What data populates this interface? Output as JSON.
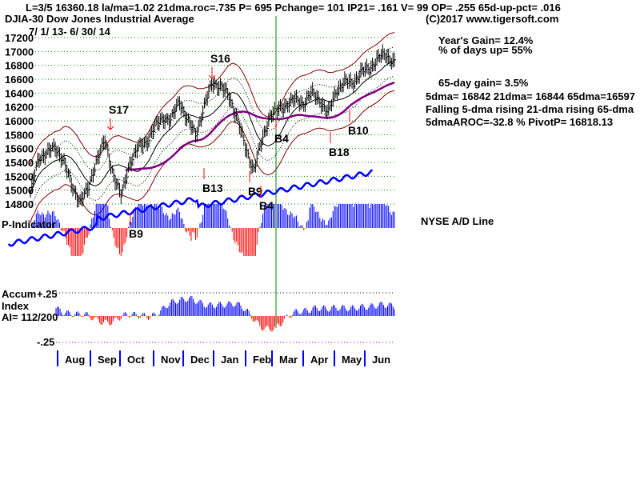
{
  "header": {
    "stats_line": "L=3/5  16360.18  la/ma=1.02 21dma.roc=.735 P=  695 Pchange=  101 IP21= .161 V= 99 OP= .255 65d-up-pct= .016",
    "index_name": "DJIA-30  Dow Jones Industrial Average",
    "copyright": "(C)2017 www.tigersoft.com",
    "date_range": "7/ 1/ 13- 6/ 30/ 14"
  },
  "right_panel": {
    "years_gain": "Year's Gain= 12.4%",
    "pct_days_up": "% of days up= 55%",
    "gain_65d": "65-day gain= 3.5%",
    "dma_values": "5dma= 16842 21dma= 16844 65dma=16597",
    "dma_trend": "Falling 5-dma  rising 21-dma  rising 65-dma",
    "aroc_pivot": "5dmaAROC=-32.8 %  PivotP= 16818.13",
    "ad_line_label": "NYSE A/D Line"
  },
  "chart_data": {
    "type": "line",
    "title": "DJIA-30  Dow Jones Industrial Average",
    "ylim": [
      14800,
      17200
    ],
    "yticks": [
      "17200",
      "17000",
      "16800",
      "16600",
      "16400",
      "16200",
      "16000",
      "15800",
      "15600",
      "15400",
      "15200",
      "15000",
      "14800"
    ],
    "months": [
      "Aug",
      "Sep",
      "Oct",
      "Nov",
      "Dec",
      "Jan",
      "Feb",
      "Mar",
      "Apr",
      "May",
      "Jun"
    ],
    "price_keypoints": [
      14950,
      15450,
      15550,
      15600,
      15450,
      15050,
      14850,
      15000,
      15450,
      15700,
      15250,
      14900,
      15400,
      15600,
      15700,
      15900,
      16050,
      16000,
      16300,
      16000,
      15800,
      16200,
      16550,
      16500,
      16350,
      16050,
      15600,
      15300,
      15700,
      16100,
      16150,
      16250,
      16300,
      16250,
      16400,
      16300,
      16100,
      16450,
      16550,
      16550,
      16700,
      16750,
      16900,
      16950,
      16850
    ],
    "signals": [
      {
        "label": "S17",
        "type": "sell"
      },
      {
        "label": "S16",
        "type": "sell"
      },
      {
        "label": "B13",
        "type": "buy"
      },
      {
        "label": "B9",
        "type": "buy"
      },
      {
        "label": "B4",
        "type": "buy"
      },
      {
        "label": "B18",
        "type": "buy"
      },
      {
        "label": "B10",
        "type": "buy"
      },
      {
        "label": "B9",
        "type": "buy"
      },
      {
        "label": "B4",
        "type": "buy"
      }
    ],
    "p_indicator_label": "P-Indicator",
    "accum": {
      "label1": "Accum",
      "label2": "Index",
      "ai": "AI= 112/200",
      "upper": "+.25",
      "lower": "-.25"
    }
  },
  "colors": {
    "grid": "#008000",
    "bars": "#000000",
    "upper_band": "#800000",
    "ma65": "#800080",
    "sell": "#ff0000",
    "buy": "#0000ff",
    "marker": "#008000"
  }
}
